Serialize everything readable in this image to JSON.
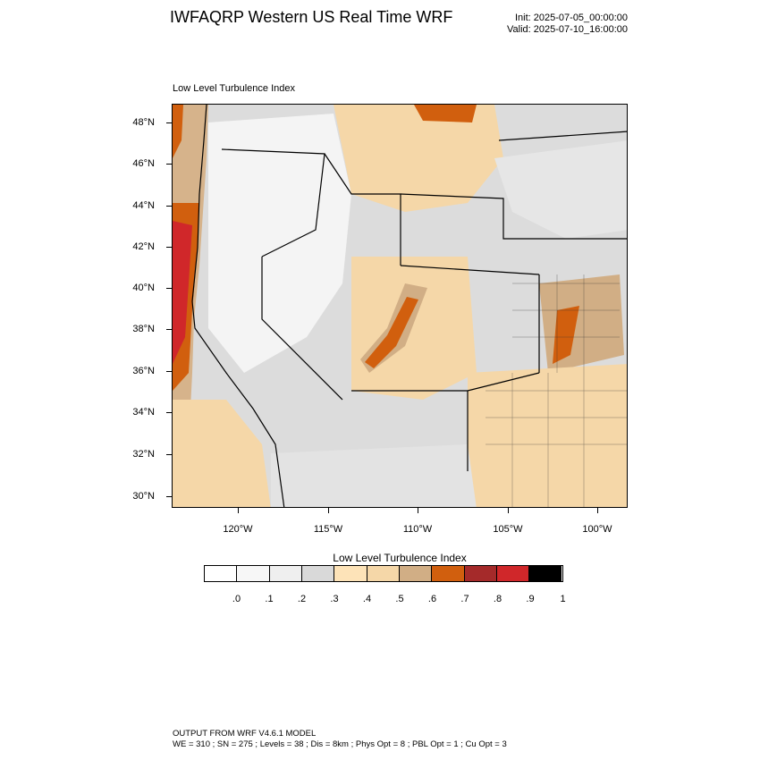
{
  "header": {
    "title": "IWFAQRP Western US Real Time WRF",
    "init": "Init: 2025-07-05_00:00:00",
    "valid": "Valid: 2025-07-10_16:00:00"
  },
  "map": {
    "field_title": "Low Level Turbulence Index",
    "lat_labels": [
      "48°N",
      "46°N",
      "44°N",
      "42°N",
      "40°N",
      "38°N",
      "36°N",
      "34°N",
      "32°N",
      "30°N"
    ],
    "lon_labels": [
      "120°W",
      "115°W",
      "110°W",
      "105°W",
      "100°W"
    ]
  },
  "legend": {
    "title": "Low Level Turbulence Index",
    "labels": [
      ".0",
      ".1",
      ".2",
      ".3",
      ".4",
      ".5",
      ".6",
      ".7",
      ".8",
      ".9",
      "1"
    ],
    "colors": [
      "#ffffff",
      "#f7f7f7",
      "#efefef",
      "#d9d9d9",
      "#fde3b8",
      "#f5d7a8",
      "#d1ae85",
      "#d15f0e",
      "#a52a2a",
      "#d0272a",
      "#000000"
    ]
  },
  "footer": {
    "line1": "OUTPUT FROM WRF V4.6.1 MODEL",
    "line2": "WE = 310 ; SN = 275 ; Levels = 38 ; Dis = 8km ; Phys Opt = 8 ; PBL Opt = 1 ; Cu Opt = 3"
  }
}
